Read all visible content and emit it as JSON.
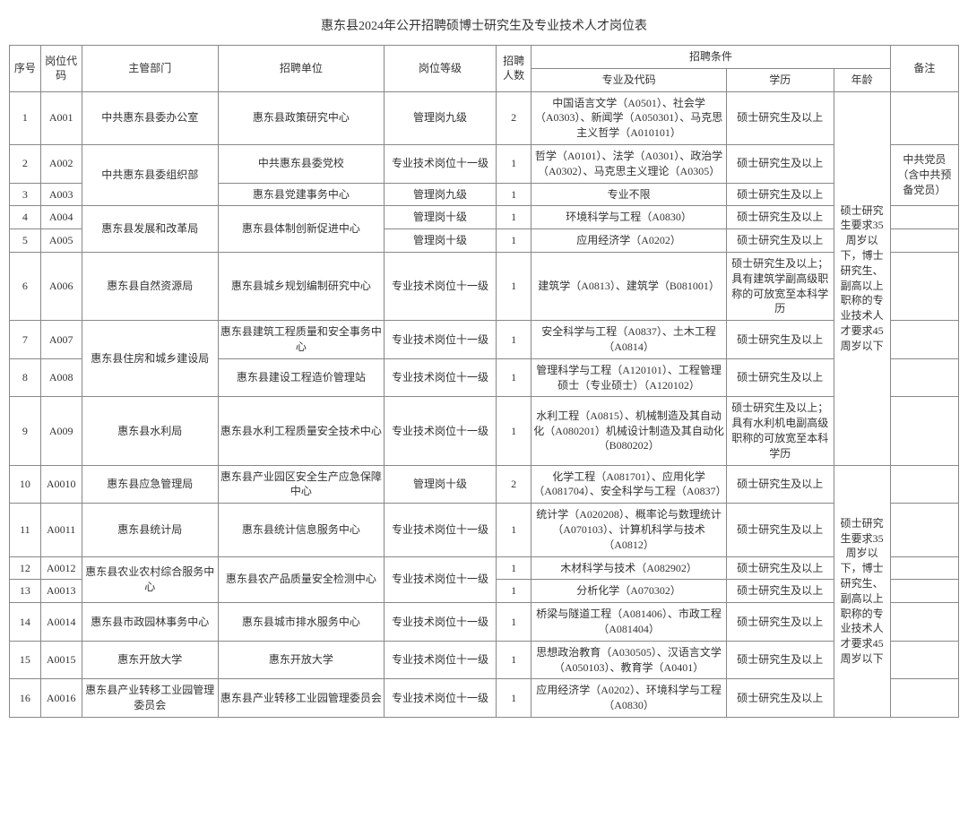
{
  "title": "惠东县2024年公开招聘硕博士研究生及专业技术人才岗位表",
  "headers": {
    "seq": "序号",
    "code": "岗位代码",
    "dept": "主管部门",
    "unit": "招聘单位",
    "level": "岗位等级",
    "count": "招聘人数",
    "conditions": "招聘条件",
    "major": "专业及代码",
    "edu": "学历",
    "age": "年龄",
    "remark": "备注"
  },
  "age_note_1": "硕士研究生要求35周岁以下，博士研究生、副高以上职称的专业技术人才要求45周岁以下",
  "age_note_2": "硕士研究生要求35周岁以下，博士研究生、副高以上职称的专业技术人才要求45周岁以下",
  "remark_party": "中共党员（含中共预备党员）",
  "rows": {
    "r1": {
      "seq": "1",
      "code": "A001",
      "dept": "中共惠东县委办公室",
      "unit": "惠东县政策研究中心",
      "level": "管理岗九级",
      "count": "2",
      "major": "中国语言文学（A0501）、社会学（A0303）、新闻学（A050301）、马克思主义哲学（A010101）",
      "edu": "硕士研究生及以上"
    },
    "r2": {
      "seq": "2",
      "code": "A002",
      "dept": "中共惠东县委组织部",
      "unit": "中共惠东县委党校",
      "level": "专业技术岗位十一级",
      "count": "1",
      "major": "哲学（A0101）、法学（A0301）、政治学（A0302）、马克思主义理论（A0305）",
      "edu": "硕士研究生及以上"
    },
    "r3": {
      "seq": "3",
      "code": "A003",
      "unit": "惠东县党建事务中心",
      "level": "管理岗九级",
      "count": "1",
      "major": "专业不限",
      "edu": "硕士研究生及以上"
    },
    "r4": {
      "seq": "4",
      "code": "A004",
      "dept": "惠东县发展和改革局",
      "unit": "惠东县体制创新促进中心",
      "level": "管理岗十级",
      "count": "1",
      "major": "环境科学与工程（A0830）",
      "edu": "硕士研究生及以上"
    },
    "r5": {
      "seq": "5",
      "code": "A005",
      "level": "管理岗十级",
      "count": "1",
      "major": "应用经济学（A0202）",
      "edu": "硕士研究生及以上"
    },
    "r6": {
      "seq": "6",
      "code": "A006",
      "dept": "惠东县自然资源局",
      "unit": "惠东县城乡规划编制研究中心",
      "level": "专业技术岗位十一级",
      "count": "1",
      "major": "建筑学（A0813）、建筑学（B081001）",
      "edu": "硕士研究生及以上；具有建筑学副高级职称的可放宽至本科学历"
    },
    "r7": {
      "seq": "7",
      "code": "A007",
      "dept": "惠东县住房和城乡建设局",
      "unit": "惠东县建筑工程质量和安全事务中心",
      "level": "专业技术岗位十一级",
      "count": "1",
      "major": "安全科学与工程（A0837）、土木工程（A0814）",
      "edu": "硕士研究生及以上"
    },
    "r8": {
      "seq": "8",
      "code": "A008",
      "unit": "惠东县建设工程造价管理站",
      "level": "专业技术岗位十一级",
      "count": "1",
      "major": "管理科学与工程（A120101）、工程管理硕士（专业硕士）（A120102）",
      "edu": "硕士研究生及以上"
    },
    "r9": {
      "seq": "9",
      "code": "A009",
      "dept": "惠东县水利局",
      "unit": "惠东县水利工程质量安全技术中心",
      "level": "专业技术岗位十一级",
      "count": "1",
      "major": "水利工程（A0815）、机械制造及其自动化（A080201）机械设计制造及其自动化（B080202）",
      "edu": "硕士研究生及以上；具有水利机电副高级职称的可放宽至本科学历"
    },
    "r10": {
      "seq": "10",
      "code": "A0010",
      "dept": "惠东县应急管理局",
      "unit": "惠东县产业园区安全生产应急保障中心",
      "level": "管理岗十级",
      "count": "2",
      "major": "化学工程（A081701）、应用化学（A081704）、安全科学与工程（A0837）",
      "edu": "硕士研究生及以上"
    },
    "r11": {
      "seq": "11",
      "code": "A0011",
      "dept": "惠东县统计局",
      "unit": "惠东县统计信息服务中心",
      "level": "专业技术岗位十一级",
      "count": "1",
      "major": "统计学（A020208）、概率论与数理统计（A070103）、计算机科学与技术（A0812）",
      "edu": "硕士研究生及以上"
    },
    "r12": {
      "seq": "12",
      "code": "A0012",
      "dept": "惠东县农业农村综合服务中心",
      "unit": "惠东县农产品质量安全检测中心",
      "level": "专业技术岗位十一级",
      "count": "1",
      "major": "木材科学与技术（A082902）",
      "edu": "硕士研究生及以上"
    },
    "r13": {
      "seq": "13",
      "code": "A0013",
      "count": "1",
      "major": "分析化学（A070302）",
      "edu": "硕士研究生及以上"
    },
    "r14": {
      "seq": "14",
      "code": "A0014",
      "dept": "惠东县市政园林事务中心",
      "unit": "惠东县城市排水服务中心",
      "level": "专业技术岗位十一级",
      "count": "1",
      "major": "桥梁与隧道工程（A081406）、市政工程（A081404）",
      "edu": "硕士研究生及以上"
    },
    "r15": {
      "seq": "15",
      "code": "A0015",
      "dept": "惠东开放大学",
      "unit": "惠东开放大学",
      "level": "专业技术岗位十一级",
      "count": "1",
      "major": "思想政治教育（A030505）、汉语言文学（A050103）、教育学（A0401）",
      "edu": "硕士研究生及以上"
    },
    "r16": {
      "seq": "16",
      "code": "A0016",
      "dept": "惠东县产业转移工业园管理委员会",
      "unit": "惠东县产业转移工业园管理委员会",
      "level": "专业技术岗位十一级",
      "count": "1",
      "major": "应用经济学（A0202）、环境科学与工程（A0830）",
      "edu": "硕士研究生及以上"
    }
  }
}
